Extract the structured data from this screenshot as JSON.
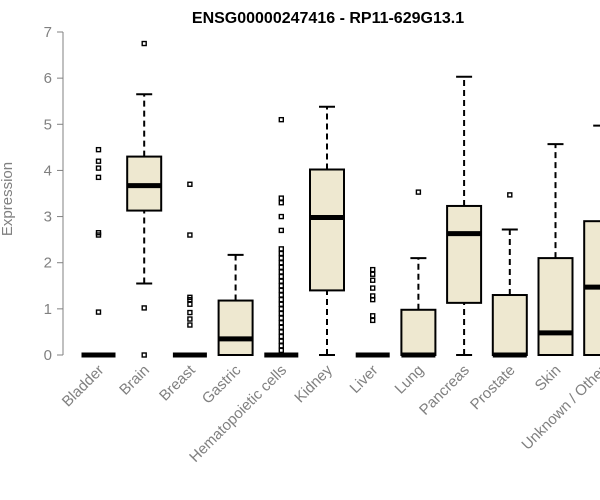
{
  "chart_data": {
    "type": "boxplot",
    "title": "ENSG00000247416 - RP11-629G13.1",
    "ylabel": "Expression",
    "xlabel": "",
    "ylim": [
      0,
      7
    ],
    "yticks": [
      0,
      1,
      2,
      3,
      4,
      5,
      6,
      7
    ],
    "grid": false,
    "box_color": "#EEE8D0",
    "categories": [
      "Bladder",
      "Brain",
      "Breast",
      "Gastric",
      "Hematopoietic cells",
      "Kidney",
      "Liver",
      "Lung",
      "Pancreas",
      "Prostate",
      "Skin",
      "Unknown / Other"
    ],
    "boxes": [
      {
        "category": "Bladder",
        "whisker_low": 0,
        "q1": 0,
        "median": 0,
        "q3": 0,
        "whisker_high": 0,
        "outliers": [
          0.93,
          2.6,
          2.65,
          3.85,
          4.05,
          4.2,
          4.45
        ]
      },
      {
        "category": "Brain",
        "whisker_low": 1.55,
        "q1": 3.13,
        "median": 3.67,
        "q3": 4.3,
        "whisker_high": 5.65,
        "outliers": [
          0,
          1.02,
          6.75
        ]
      },
      {
        "category": "Breast",
        "whisker_low": 0,
        "q1": 0,
        "median": 0,
        "q3": 0,
        "whisker_high": 0,
        "outliers": [
          0.65,
          0.78,
          0.92,
          1.1,
          1.2,
          1.25,
          2.6,
          3.7
        ]
      },
      {
        "category": "Gastric",
        "whisker_low": 0,
        "q1": 0,
        "median": 0.35,
        "q3": 1.18,
        "whisker_high": 2.17,
        "outliers": []
      },
      {
        "category": "Hematopoietic cells",
        "whisker_low": 0,
        "q1": 0,
        "median": 0,
        "q3": 0,
        "whisker_high": 0,
        "outliers": [
          0.1,
          0.2,
          0.3,
          0.4,
          0.5,
          0.6,
          0.7,
          0.8,
          0.9,
          1.0,
          1.1,
          1.2,
          1.3,
          1.4,
          1.5,
          1.6,
          1.7,
          1.8,
          1.9,
          2.0,
          2.1,
          2.2,
          2.3,
          2.7,
          3.0,
          3.3,
          3.4,
          5.1
        ]
      },
      {
        "category": "Kidney",
        "whisker_low": 0,
        "q1": 1.4,
        "median": 2.98,
        "q3": 4.02,
        "whisker_high": 5.38,
        "outliers": []
      },
      {
        "category": "Liver",
        "whisker_low": 0,
        "q1": 0,
        "median": 0,
        "q3": 0,
        "whisker_high": 0,
        "outliers": [
          0.75,
          0.85,
          1.2,
          1.28,
          1.45,
          1.62,
          1.75,
          1.85
        ]
      },
      {
        "category": "Lung",
        "whisker_low": 0,
        "q1": 0,
        "median": 0,
        "q3": 0.98,
        "whisker_high": 2.1,
        "outliers": [
          3.53
        ]
      },
      {
        "category": "Pancreas",
        "whisker_low": 0,
        "q1": 1.13,
        "median": 2.63,
        "q3": 3.23,
        "whisker_high": 6.03,
        "outliers": []
      },
      {
        "category": "Prostate",
        "whisker_low": 0,
        "q1": 0,
        "median": 0,
        "q3": 1.3,
        "whisker_high": 2.72,
        "outliers": [
          3.47
        ]
      },
      {
        "category": "Skin",
        "whisker_low": 0,
        "q1": 0,
        "median": 0.48,
        "q3": 2.1,
        "whisker_high": 4.57,
        "outliers": []
      },
      {
        "category": "Unknown / Other",
        "whisker_low": 0,
        "q1": 0,
        "median": 1.47,
        "q3": 2.9,
        "whisker_high": 4.97,
        "outliers": []
      }
    ]
  }
}
